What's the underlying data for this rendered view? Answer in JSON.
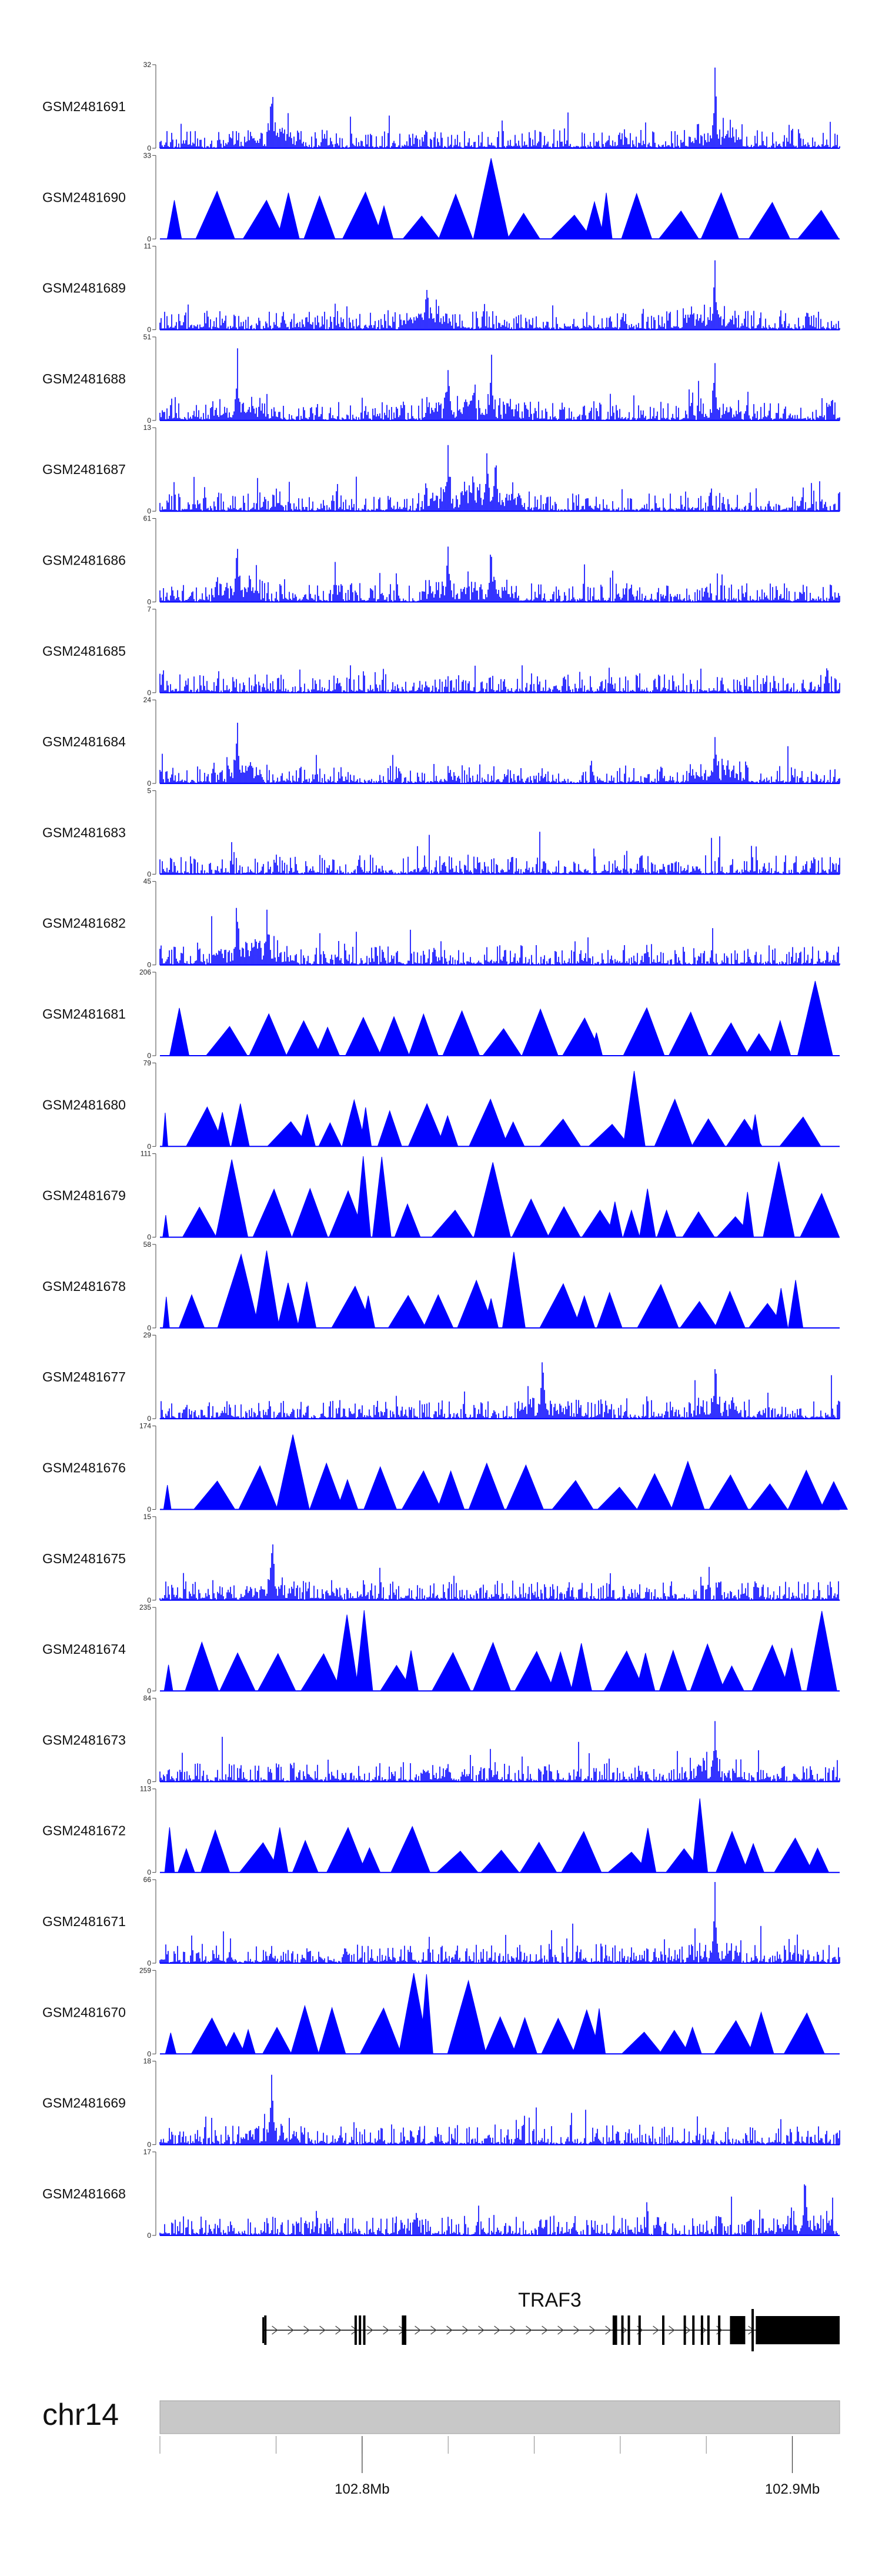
{
  "chart_data": {
    "type": "genome-browser-coverage",
    "title": "",
    "chromosome": "chr14",
    "gene": {
      "name": "TRAF3",
      "strand": "+",
      "start_mb": 102.777,
      "end_mb": 102.911,
      "exons_mb": [
        102.7775,
        102.7985,
        102.7995,
        102.8005,
        102.8095,
        102.81,
        102.8585,
        102.859,
        102.8605,
        102.862,
        102.8645,
        102.87,
        102.875,
        102.877,
        102.879,
        102.8805,
        102.883
      ]
    },
    "x_axis": {
      "range_mb": [
        102.753,
        102.911
      ],
      "minor_ticks_mb": [
        102.753,
        102.78,
        102.8,
        102.82,
        102.84,
        102.86,
        102.88,
        102.9
      ],
      "labeled_ticks": [
        {
          "value": 102.8,
          "label": "102.8Mb"
        },
        {
          "value": 102.9,
          "label": "102.9Mb"
        }
      ]
    },
    "tracks": [
      {
        "name": "GSM2481691",
        "ymax": 32,
        "style": "dense",
        "peaks_mb": [
          102.779,
          102.882
        ]
      },
      {
        "name": "GSM2481690",
        "ymax": 33,
        "style": "sparse",
        "peaks_mb": [
          102.831,
          102.88
        ]
      },
      {
        "name": "GSM2481689",
        "ymax": 11,
        "style": "dense",
        "peaks_mb": [
          102.882,
          102.815
        ]
      },
      {
        "name": "GSM2481688",
        "ymax": 51,
        "style": "dense",
        "peaks_mb": [
          102.771,
          102.82,
          102.83,
          102.882
        ]
      },
      {
        "name": "GSM2481687",
        "ymax": 13,
        "style": "dense",
        "peaks_mb": [
          102.82,
          102.829,
          102.831
        ]
      },
      {
        "name": "GSM2481686",
        "ymax": 61,
        "style": "dense",
        "peaks_mb": [
          102.771,
          102.82,
          102.83
        ]
      },
      {
        "name": "GSM2481685",
        "ymax": 7,
        "style": "dense",
        "peaks_mb": []
      },
      {
        "name": "GSM2481684",
        "ymax": 24,
        "style": "dense",
        "peaks_mb": [
          102.771,
          102.882
        ]
      },
      {
        "name": "GSM2481683",
        "ymax": 5,
        "style": "dense",
        "peaks_mb": []
      },
      {
        "name": "GSM2481682",
        "ymax": 45,
        "style": "dense",
        "peaks_mb": [
          102.771,
          102.778
        ]
      },
      {
        "name": "GSM2481681",
        "ymax": 206,
        "style": "sparse",
        "peaks_mb": [
          102.882,
          102.906
        ]
      },
      {
        "name": "GSM2481680",
        "ymax": 79,
        "style": "sparse",
        "peaks_mb": [
          102.864
        ]
      },
      {
        "name": "GSM2481679",
        "ymax": 111,
        "style": "sparse",
        "peaks_mb": [
          102.771,
          102.803,
          102.83,
          102.896
        ]
      },
      {
        "name": "GSM2481678",
        "ymax": 58,
        "style": "sparse",
        "peaks_mb": [
          102.775,
          102.837,
          102.864
        ]
      },
      {
        "name": "GSM2481677",
        "ymax": 29,
        "style": "dense",
        "peaks_mb": [
          102.842,
          102.882
        ]
      },
      {
        "name": "GSM2481676",
        "ymax": 174,
        "style": "sparse",
        "peaks_mb": [
          102.785
        ]
      },
      {
        "name": "GSM2481675",
        "ymax": 15,
        "style": "dense",
        "peaks_mb": [
          102.779
        ]
      },
      {
        "name": "GSM2481674",
        "ymax": 235,
        "style": "sparse",
        "peaks_mb": [
          102.799,
          102.906
        ]
      },
      {
        "name": "GSM2481673",
        "ymax": 84,
        "style": "dense",
        "peaks_mb": [
          102.882
        ]
      },
      {
        "name": "GSM2481672",
        "ymax": 113,
        "style": "sparse",
        "peaks_mb": [
          102.879
        ]
      },
      {
        "name": "GSM2481671",
        "ymax": 66,
        "style": "dense",
        "peaks_mb": [
          102.882
        ]
      },
      {
        "name": "GSM2481670",
        "ymax": 259,
        "style": "sparse",
        "peaks_mb": [
          102.815,
          102.826
        ]
      },
      {
        "name": "GSM2481669",
        "ymax": 18,
        "style": "dense",
        "peaks_mb": [
          102.779
        ]
      },
      {
        "name": "GSM2481668",
        "ymax": 17,
        "style": "dense",
        "peaks_mb": [
          102.903
        ]
      }
    ],
    "colors": {
      "signal": "#0000ff",
      "ideogram": "#c8c8c8",
      "gene": "#000000"
    }
  }
}
